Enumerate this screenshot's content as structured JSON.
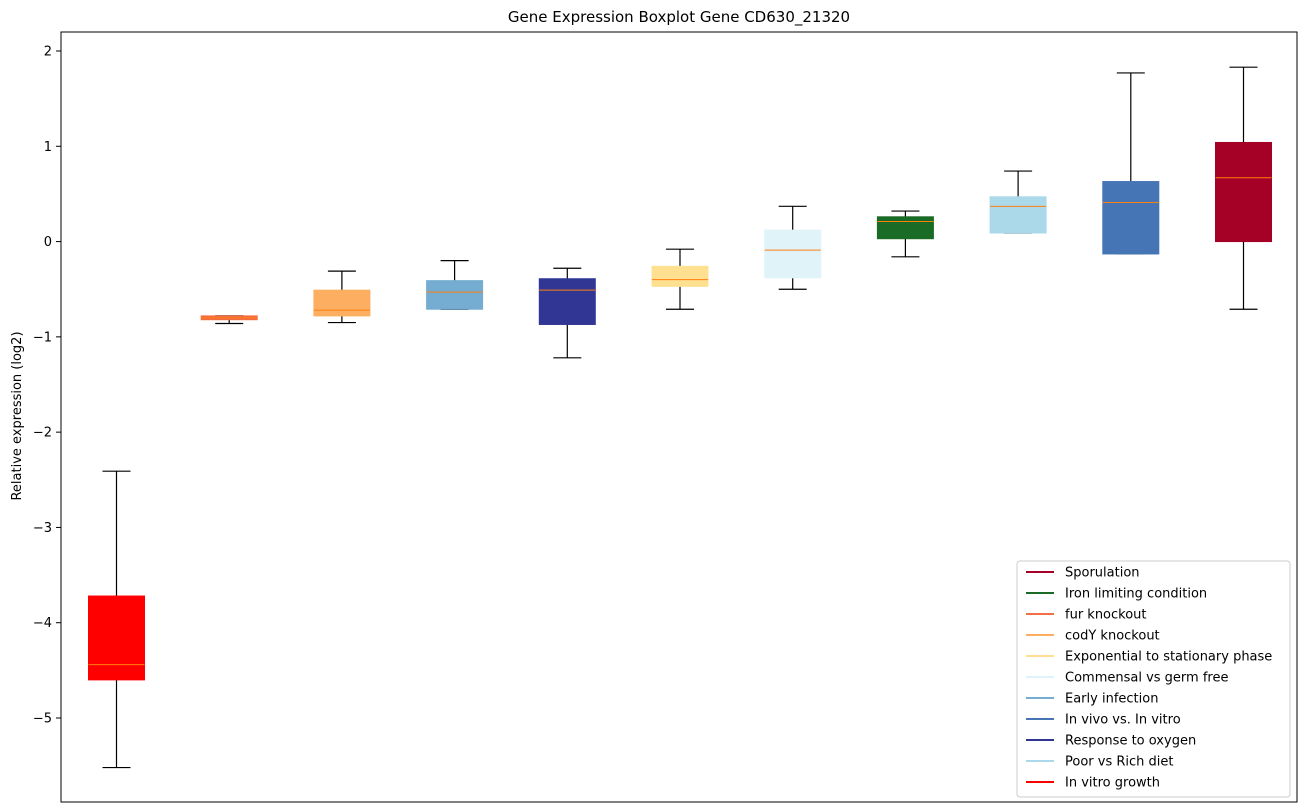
{
  "chart_data": {
    "type": "boxplot",
    "title": "Gene Expression Boxplot Gene CD630_21320",
    "xlabel": "",
    "ylabel": "Relative expression (log2)",
    "ylim": [
      -5.8,
      2.2
    ],
    "yticks": [
      2,
      1,
      0,
      -1,
      -2,
      -3,
      -4,
      -5
    ],
    "ytick_labels": [
      "2",
      "1",
      "0",
      "−1",
      "−2",
      "−3",
      "−4",
      "−5"
    ],
    "legend_position": "lower right",
    "boxes": [
      {
        "name": "In vitro growth",
        "color": "#ff0000",
        "whisker_low": -5.52,
        "q1": -4.6,
        "median": -4.44,
        "q3": -3.72,
        "whisker_high": -2.41
      },
      {
        "name": "fur knockout",
        "color": "#f46d43",
        "whisker_low": -0.86,
        "q1": -0.82,
        "median": -0.8,
        "q3": -0.78,
        "whisker_high": -0.78
      },
      {
        "name": "codY knockout",
        "color": "#fdae61",
        "whisker_low": -0.85,
        "q1": -0.78,
        "median": -0.72,
        "q3": -0.51,
        "whisker_high": -0.31
      },
      {
        "name": "Early infection",
        "color": "#74add1",
        "whisker_low": -0.71,
        "q1": -0.71,
        "median": -0.53,
        "q3": -0.41,
        "whisker_high": -0.2
      },
      {
        "name": "Response to oxygen",
        "color": "#313695",
        "whisker_low": -1.22,
        "q1": -0.87,
        "median": -0.51,
        "q3": -0.39,
        "whisker_high": -0.28
      },
      {
        "name": "Exponential to stationary phase",
        "color": "#fee090",
        "whisker_low": -0.71,
        "q1": -0.47,
        "median": -0.4,
        "q3": -0.26,
        "whisker_high": -0.08
      },
      {
        "name": "Commensal vs germ free",
        "color": "#e0f3f8",
        "whisker_low": -0.5,
        "q1": -0.38,
        "median": -0.09,
        "q3": 0.12,
        "whisker_high": 0.37
      },
      {
        "name": "Iron limiting condition",
        "color": "#1a6b25",
        "whisker_low": -0.16,
        "q1": 0.03,
        "median": 0.21,
        "q3": 0.26,
        "whisker_high": 0.32
      },
      {
        "name": "Poor vs Rich diet",
        "color": "#abd9e9",
        "whisker_low": 0.09,
        "q1": 0.09,
        "median": 0.37,
        "q3": 0.47,
        "whisker_high": 0.74
      },
      {
        "name": "In vivo vs. In vitro",
        "color": "#4575b4",
        "whisker_low": -0.13,
        "q1": -0.13,
        "median": 0.41,
        "q3": 0.63,
        "whisker_high": 1.77
      },
      {
        "name": "Sporulation",
        "color": "#a50026",
        "whisker_low": -0.71,
        "q1": 0.0,
        "median": 0.67,
        "q3": 1.04,
        "whisker_high": 1.83
      }
    ],
    "median_color": "#ff7f0e",
    "legend": [
      {
        "label": "Sporulation",
        "color": "#a50026"
      },
      {
        "label": "Iron limiting condition",
        "color": "#1a6b25"
      },
      {
        "label": "fur knockout",
        "color": "#f46d43"
      },
      {
        "label": "codY knockout",
        "color": "#fdae61"
      },
      {
        "label": "Exponential to stationary phase",
        "color": "#fee090"
      },
      {
        "label": "Commensal vs germ free",
        "color": "#e0f3f8"
      },
      {
        "label": "Early infection",
        "color": "#74add1"
      },
      {
        "label": "In vivo vs. In vitro",
        "color": "#4575b4"
      },
      {
        "label": "Response to oxygen",
        "color": "#313695"
      },
      {
        "label": "Poor vs Rich diet",
        "color": "#abd9e9"
      },
      {
        "label": "In vitro growth",
        "color": "#ff0000"
      }
    ]
  }
}
